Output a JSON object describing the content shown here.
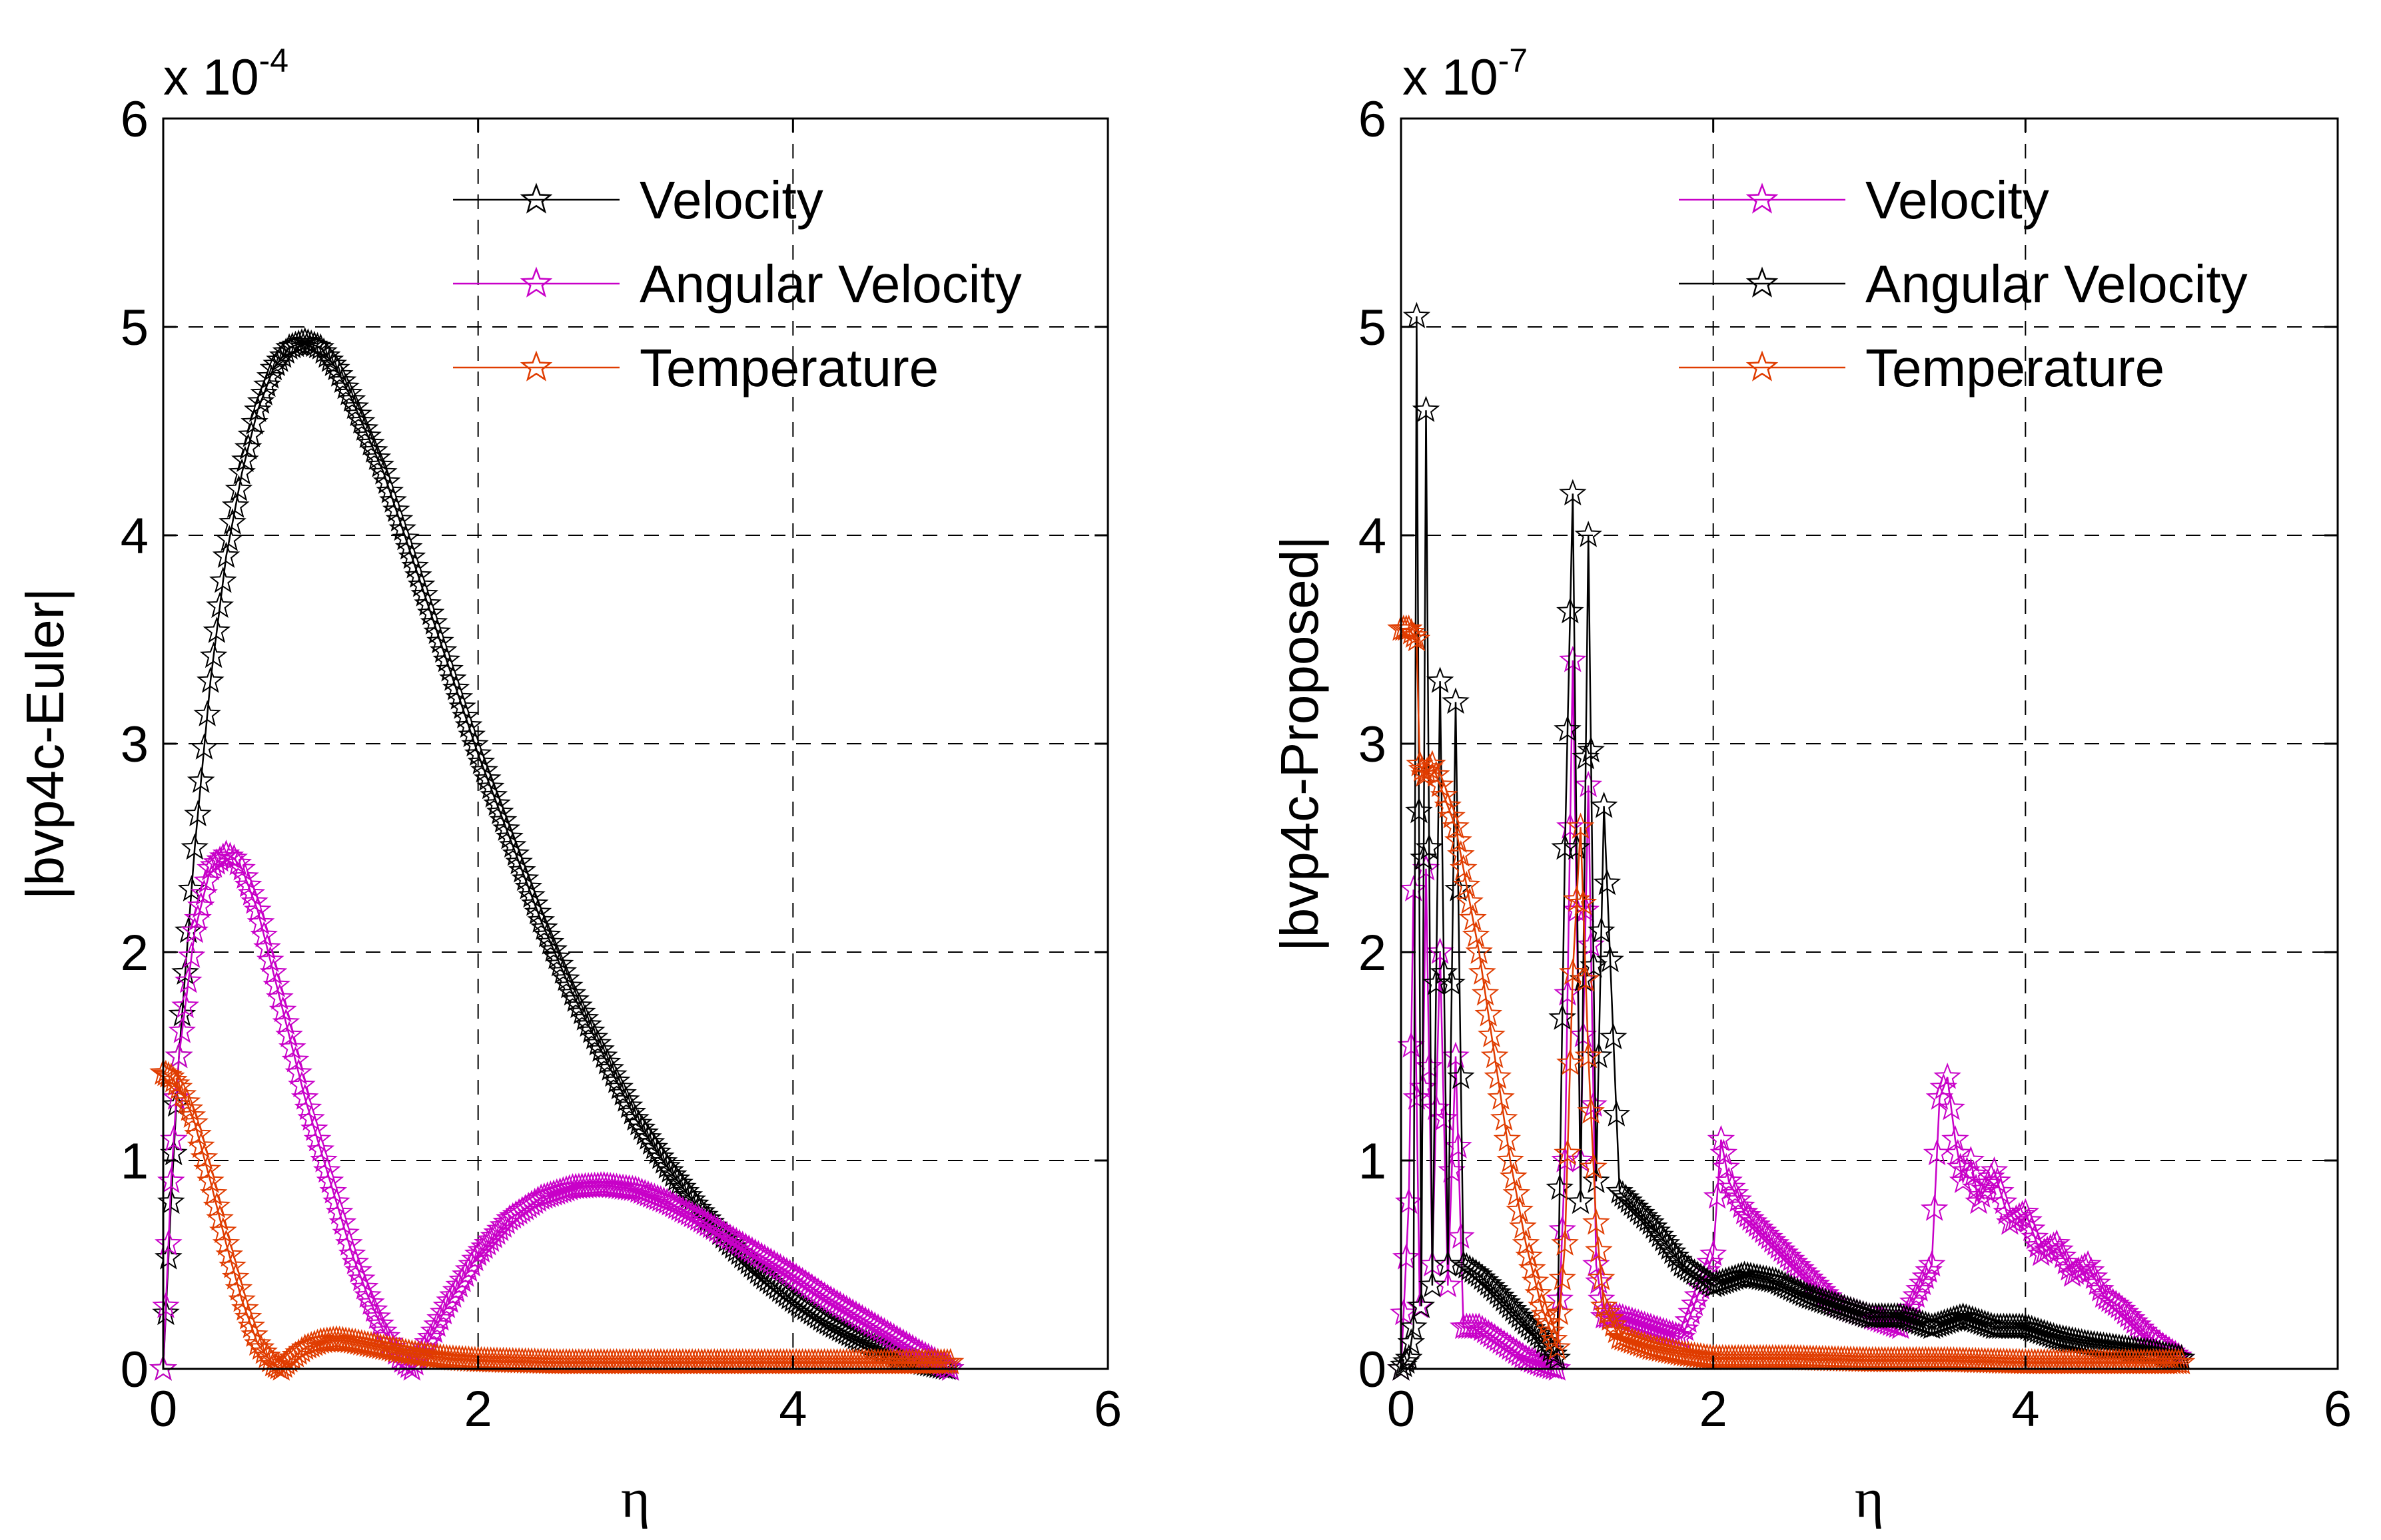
{
  "chart_data": [
    {
      "type": "line",
      "ylabel": "|bvp4c-Euler|",
      "xlabel": "η",
      "xlim": [
        0,
        6
      ],
      "ylim": [
        0,
        6
      ],
      "xticks": [
        "0",
        "2",
        "4",
        "6"
      ],
      "yticks": [
        "0",
        "1",
        "2",
        "3",
        "4",
        "5",
        "6"
      ],
      "y_multiplier_base": "x 10",
      "y_multiplier_exp": "-4",
      "grid": true,
      "legend_position": "top-right",
      "series": [
        {
          "name": "Velocity",
          "color": "#000000",
          "x": [
            0,
            0.05,
            0.1,
            0.2,
            0.3,
            0.4,
            0.5,
            0.6,
            0.7,
            0.8,
            0.9,
            1.0,
            1.1,
            1.2,
            1.4,
            1.6,
            1.8,
            2.0,
            2.2,
            2.4,
            2.6,
            2.8,
            3.0,
            3.2,
            3.4,
            3.6,
            3.8,
            4.0,
            4.2,
            4.4,
            4.6,
            4.8,
            5.0
          ],
          "y": [
            0,
            0.8,
            1.5,
            2.5,
            3.3,
            3.9,
            4.3,
            4.6,
            4.8,
            4.9,
            4.93,
            4.9,
            4.8,
            4.65,
            4.3,
            3.85,
            3.4,
            2.95,
            2.55,
            2.15,
            1.8,
            1.5,
            1.2,
            0.97,
            0.77,
            0.6,
            0.45,
            0.33,
            0.23,
            0.15,
            0.08,
            0.03,
            0
          ]
        },
        {
          "name": "Angular Velocity",
          "color": "#c800c8",
          "x": [
            0,
            0.05,
            0.1,
            0.2,
            0.3,
            0.4,
            0.45,
            0.5,
            0.6,
            0.7,
            0.8,
            0.9,
            1.0,
            1.1,
            1.2,
            1.3,
            1.4,
            1.5,
            1.58,
            1.7,
            1.8,
            2.0,
            2.2,
            2.4,
            2.6,
            2.8,
            3.0,
            3.2,
            3.4,
            3.6,
            3.8,
            4.0,
            4.2,
            4.4,
            4.6,
            4.8,
            5.0
          ],
          "y": [
            0,
            0.9,
            1.5,
            2.1,
            2.4,
            2.47,
            2.45,
            2.4,
            2.2,
            1.9,
            1.6,
            1.3,
            1.05,
            0.8,
            0.55,
            0.35,
            0.18,
            0.05,
            0,
            0.15,
            0.3,
            0.55,
            0.72,
            0.82,
            0.87,
            0.88,
            0.86,
            0.8,
            0.72,
            0.63,
            0.54,
            0.45,
            0.35,
            0.26,
            0.17,
            0.08,
            0
          ]
        },
        {
          "name": "Temperature",
          "color": "#e03c00",
          "x": [
            0,
            0.05,
            0.1,
            0.15,
            0.2,
            0.3,
            0.4,
            0.5,
            0.6,
            0.7,
            0.75,
            0.8,
            0.9,
            1.0,
            1.1,
            1.2,
            1.4,
            1.6,
            1.8,
            2.0,
            2.5,
            3.0,
            3.5,
            4.0,
            4.5,
            5.0
          ],
          "y": [
            1.42,
            1.4,
            1.35,
            1.28,
            1.18,
            0.9,
            0.6,
            0.33,
            0.12,
            0.02,
            0,
            0.04,
            0.1,
            0.13,
            0.14,
            0.13,
            0.1,
            0.07,
            0.05,
            0.04,
            0.03,
            0.03,
            0.03,
            0.03,
            0.03,
            0.03
          ]
        }
      ]
    },
    {
      "type": "line",
      "ylabel": "|bvp4c-Proposed|",
      "xlabel": "η",
      "xlim": [
        0,
        6
      ],
      "ylim": [
        0,
        6
      ],
      "xticks": [
        "0",
        "2",
        "4",
        "6"
      ],
      "yticks": [
        "0",
        "1",
        "2",
        "3",
        "4",
        "5",
        "6"
      ],
      "y_multiplier_base": "x 10",
      "y_multiplier_exp": "-7",
      "grid": true,
      "legend_position": "top-right",
      "series": [
        {
          "name": "Velocity",
          "color": "#c800c8",
          "x": [
            0,
            0.05,
            0.08,
            0.12,
            0.16,
            0.2,
            0.25,
            0.3,
            0.35,
            0.4,
            0.5,
            0.6,
            0.7,
            0.8,
            0.9,
            1.0,
            1.05,
            1.1,
            1.15,
            1.2,
            1.25,
            1.3,
            1.4,
            1.6,
            1.8,
            2.0,
            2.05,
            2.1,
            2.2,
            2.4,
            2.6,
            2.8,
            3.0,
            3.2,
            3.4,
            3.45,
            3.5,
            3.55,
            3.6,
            3.65,
            3.7,
            3.8,
            3.9,
            4.0,
            4.1,
            4.2,
            4.3,
            4.4,
            4.5,
            4.6,
            4.8,
            5.0
          ],
          "y": [
            0,
            0.8,
            2.3,
            0.3,
            2.4,
            0.5,
            2.0,
            0.4,
            1.5,
            0.2,
            0.2,
            0.15,
            0.1,
            0.05,
            0.02,
            0,
            1.0,
            3.4,
            1.0,
            2.8,
            0.5,
            0.25,
            0.25,
            0.2,
            0.15,
            0.55,
            1.1,
            0.9,
            0.75,
            0.6,
            0.45,
            0.3,
            0.25,
            0.2,
            0.5,
            1.3,
            1.4,
            1.1,
            0.9,
            1.0,
            0.8,
            0.95,
            0.7,
            0.75,
            0.55,
            0.6,
            0.45,
            0.5,
            0.35,
            0.3,
            0.15,
            0.05
          ]
        },
        {
          "name": "Angular Velocity",
          "color": "#000000",
          "x": [
            0,
            0.05,
            0.08,
            0.1,
            0.13,
            0.16,
            0.2,
            0.25,
            0.3,
            0.35,
            0.4,
            0.5,
            0.6,
            0.7,
            0.8,
            0.9,
            1.0,
            1.05,
            1.1,
            1.15,
            1.2,
            1.25,
            1.3,
            1.4,
            1.6,
            1.8,
            2.0,
            2.2,
            2.4,
            2.6,
            2.8,
            3.0,
            3.2,
            3.4,
            3.6,
            3.8,
            4.0,
            4.2,
            4.4,
            4.6,
            4.8,
            5.0
          ],
          "y": [
            0,
            0.05,
            0.2,
            5.05,
            0.3,
            4.6,
            0.4,
            3.3,
            0.5,
            3.2,
            0.5,
            0.45,
            0.38,
            0.3,
            0.22,
            0.15,
            0.05,
            2.5,
            4.2,
            0.8,
            4.0,
            0.9,
            2.7,
            0.85,
            0.7,
            0.5,
            0.4,
            0.45,
            0.42,
            0.35,
            0.3,
            0.25,
            0.25,
            0.2,
            0.25,
            0.2,
            0.2,
            0.15,
            0.12,
            0.1,
            0.08,
            0.05
          ]
        },
        {
          "name": "Temperature",
          "color": "#e03c00",
          "x": [
            0,
            0.05,
            0.1,
            0.12,
            0.15,
            0.2,
            0.25,
            0.3,
            0.35,
            0.4,
            0.5,
            0.6,
            0.7,
            0.8,
            0.9,
            1.0,
            1.05,
            1.1,
            1.15,
            1.2,
            1.25,
            1.3,
            1.4,
            1.6,
            1.8,
            2.0,
            2.5,
            3.0,
            3.5,
            4.0,
            4.5,
            5.0
          ],
          "y": [
            3.55,
            3.55,
            3.5,
            2.9,
            2.85,
            2.9,
            2.8,
            2.7,
            2.6,
            2.4,
            2.0,
            1.5,
            1.0,
            0.6,
            0.3,
            0.1,
            0.6,
            1.9,
            2.6,
            1.5,
            0.7,
            0.3,
            0.15,
            0.1,
            0.07,
            0.05,
            0.05,
            0.04,
            0.04,
            0.03,
            0.03,
            0.03
          ]
        }
      ]
    }
  ]
}
